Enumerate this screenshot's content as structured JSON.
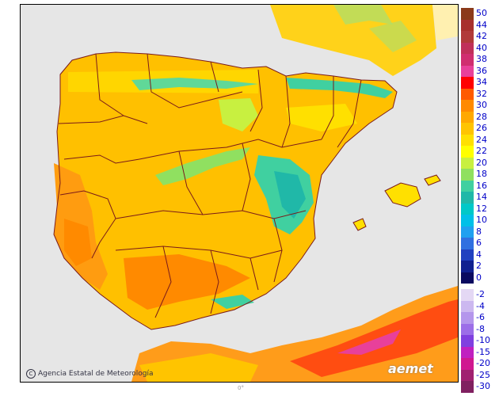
{
  "map": {
    "credit": "Agencia Estatal de Meteorología",
    "logo": "aemet",
    "bottom_mark": "0°",
    "colors": {
      "sea": "#e6e6e6",
      "africa_base": "#ff9c1a",
      "regions": "#7a1a1a"
    }
  },
  "scale": {
    "labels": [
      "50",
      "44",
      "42",
      "40",
      "38",
      "36",
      "34",
      "32",
      "30",
      "28",
      "26",
      "24",
      "22",
      "20",
      "18",
      "16",
      "14",
      "12",
      "10",
      "8",
      "6",
      "4",
      "2",
      "0",
      "-2",
      "-4",
      "-6",
      "-8",
      "-10",
      "-15",
      "-20",
      "-25",
      "-30"
    ],
    "colors": [
      "#8b3a1a",
      "#a8302d",
      "#b13a3a",
      "#c0305a",
      "#d02e70",
      "#e8409a",
      "#ff0000",
      "#ff5a00",
      "#ff8a00",
      "#ffa800",
      "#ffc400",
      "#ffe000",
      "#ffff00",
      "#c8f040",
      "#90e060",
      "#40d0a0",
      "#20b8a8",
      "#00c8c8",
      "#00c0e8",
      "#20a0f0",
      "#3070e0",
      "#2040c0",
      "#102090",
      "#0a0a60",
      "#e4d8f4",
      "#ccb8f0",
      "#b496ec",
      "#9c6ee8",
      "#8040e0",
      "#c020c0",
      "#d01890",
      "#a02070",
      "#802060"
    ]
  }
}
